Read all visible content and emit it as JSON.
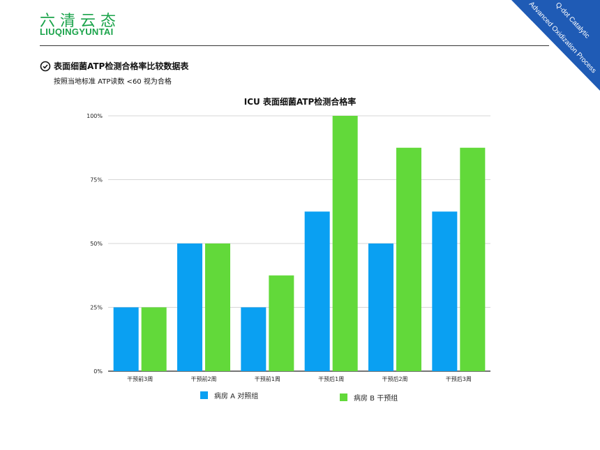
{
  "brand": {
    "cn": "六清云态",
    "en": "LIUQINGYUNTAI"
  },
  "corner": {
    "line1": "Q-dot Catalytic",
    "line2": "Advanced Oxidization Process"
  },
  "section": {
    "title": "表面细菌ATP检测合格率比较数据表",
    "subtitle": "按照当地标准 ATP读数 <60 视为合格"
  },
  "colors": {
    "brand_green": "#1aa34a",
    "series_a": "#0aa0f2",
    "series_b": "#62d93a",
    "corner_blue": "#1f5bb5"
  },
  "chart_data": {
    "type": "bar",
    "title": "ICU 表面细菌ATP检测合格率",
    "categories": [
      "干预前3周",
      "干预前2周",
      "干预前1周",
      "干预后1周",
      "干预后2周",
      "干预后3周"
    ],
    "series": [
      {
        "name": "病房 A  对照组",
        "values": [
          25,
          50,
          25,
          62.5,
          50,
          62.5
        ]
      },
      {
        "name": "病房 B 干预组",
        "values": [
          25,
          50,
          37.5,
          100,
          87.5,
          87.5
        ]
      }
    ],
    "ylim": [
      0,
      100
    ],
    "yticks": [
      "0%",
      "25%",
      "50%",
      "75%",
      "100%"
    ],
    "ytick_values": [
      0,
      25,
      50,
      75,
      100
    ],
    "grid": true,
    "legend_position": "bottom"
  }
}
